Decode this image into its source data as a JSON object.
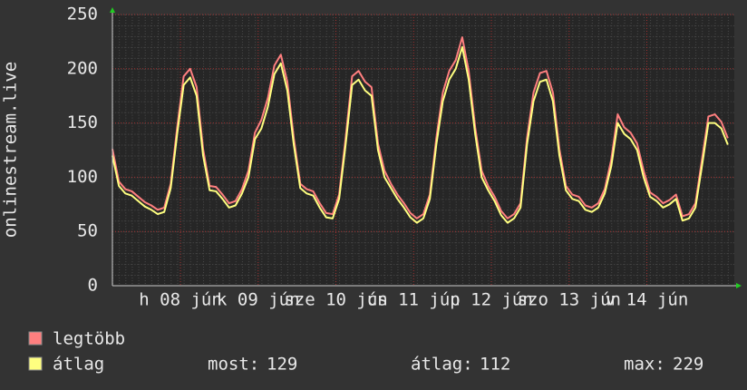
{
  "chart_data": {
    "type": "line",
    "y_label": "onlinestream.live",
    "xlim": [
      0,
      192
    ],
    "xticks": [
      {
        "value": 21,
        "label": "h 08 jún"
      },
      {
        "value": 45,
        "label": "k 09 jún"
      },
      {
        "value": 69,
        "label": "sze 10 jún"
      },
      {
        "value": 93,
        "label": "cs 11 jún"
      },
      {
        "value": 117,
        "label": "p 12 jún"
      },
      {
        "value": 141,
        "label": "szo 13 jún"
      },
      {
        "value": 165,
        "label": "v 14 jún"
      }
    ],
    "ylim": [
      0,
      250
    ],
    "yticks": [
      0,
      50,
      100,
      150,
      200,
      250
    ],
    "grid": true,
    "x": [
      0,
      2,
      4,
      6,
      8,
      10,
      12,
      14,
      16,
      18,
      20,
      22,
      24,
      26,
      28,
      30,
      32,
      34,
      36,
      38,
      40,
      42,
      44,
      46,
      48,
      50,
      52,
      54,
      56,
      58,
      60,
      62,
      64,
      66,
      68,
      70,
      72,
      74,
      76,
      78,
      80,
      82,
      84,
      86,
      88,
      90,
      92,
      94,
      96,
      98,
      100,
      102,
      104,
      106,
      108,
      110,
      112,
      114,
      116,
      118,
      120,
      122,
      124,
      126,
      128,
      130,
      132,
      134,
      136,
      138,
      140,
      142,
      144,
      146,
      148,
      150,
      152,
      154,
      156,
      158,
      160,
      162,
      164,
      166,
      168,
      170,
      172,
      174,
      176,
      178,
      180,
      182,
      184,
      186,
      188,
      190
    ],
    "series": [
      {
        "name": "legtöbb",
        "color": "#ff7f7f",
        "values": [
          126,
          96,
          89,
          87,
          82,
          77,
          74,
          70,
          72,
          94,
          146,
          193,
          200,
          183,
          126,
          92,
          91,
          84,
          76,
          78,
          89,
          106,
          141,
          153,
          173,
          203,
          213,
          188,
          136,
          94,
          89,
          87,
          76,
          67,
          66,
          84,
          136,
          193,
          198,
          188,
          183,
          131,
          106,
          94,
          84,
          76,
          67,
          62,
          66,
          84,
          136,
          178,
          198,
          208,
          229,
          198,
          146,
          106,
          92,
          82,
          69,
          62,
          66,
          76,
          136,
          178,
          196,
          198,
          178,
          126,
          92,
          84,
          82,
          74,
          72,
          76,
          89,
          116,
          158,
          146,
          141,
          131,
          106,
          86,
          82,
          76,
          79,
          84,
          64,
          66,
          76,
          116,
          156,
          158,
          151,
          136
        ]
      },
      {
        "name": "átlag",
        "color": "#ffff80",
        "values": [
          120,
          92,
          85,
          83,
          78,
          73,
          70,
          66,
          68,
          90,
          140,
          185,
          192,
          175,
          120,
          88,
          87,
          80,
          72,
          74,
          85,
          100,
          135,
          145,
          165,
          195,
          205,
          180,
          130,
          90,
          85,
          83,
          72,
          63,
          62,
          80,
          130,
          185,
          190,
          180,
          175,
          125,
          100,
          90,
          80,
          72,
          63,
          58,
          62,
          80,
          130,
          170,
          190,
          200,
          220,
          190,
          140,
          100,
          88,
          78,
          65,
          58,
          62,
          72,
          130,
          170,
          188,
          190,
          170,
          120,
          88,
          80,
          78,
          70,
          68,
          72,
          85,
          110,
          150,
          140,
          135,
          125,
          100,
          82,
          78,
          72,
          75,
          80,
          60,
          62,
          72,
          110,
          150,
          150,
          145,
          130
        ]
      }
    ],
    "stats": [
      {
        "label": "most:",
        "value": 129
      },
      {
        "label": "átlag:",
        "value": 112
      },
      {
        "label": "max:",
        "value": 229
      }
    ]
  }
}
